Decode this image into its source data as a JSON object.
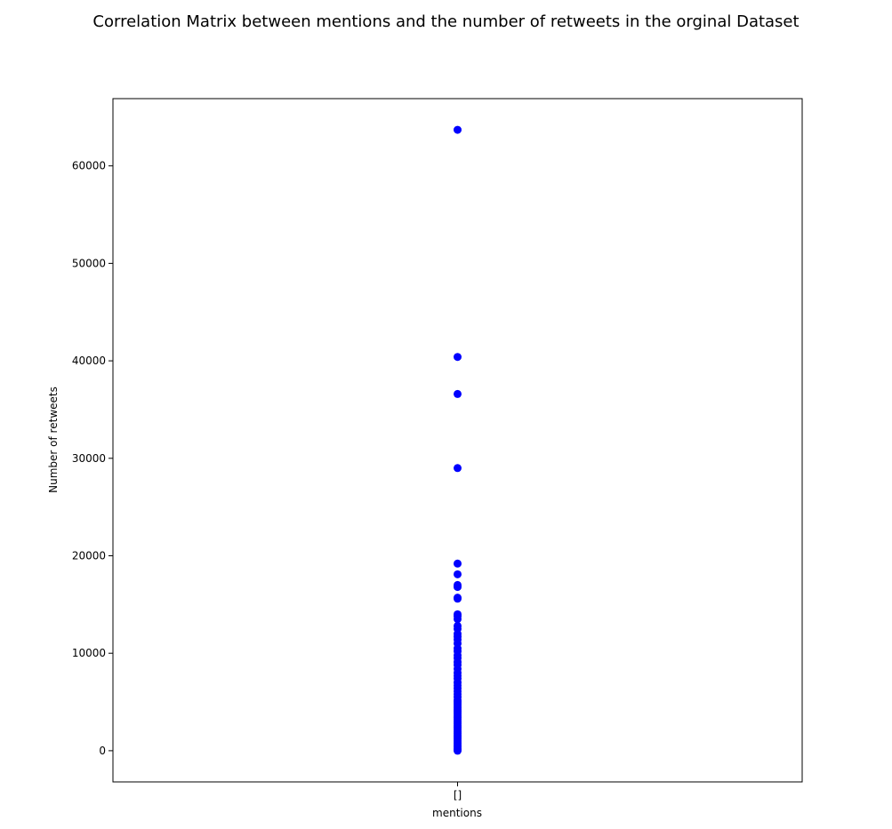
{
  "chart_data": {
    "type": "scatter",
    "title": "Correlation Matrix between mentions and the number of retweets in the orginal Dataset",
    "xlabel": "mentions",
    "ylabel": "Number of retweets",
    "x_categories": [
      "[]"
    ],
    "ylim": [
      -3200,
      66900
    ],
    "y_ticks": [
      0,
      10000,
      20000,
      30000,
      40000,
      50000,
      60000
    ],
    "grid": false,
    "legend": "none",
    "marker_color": "#0000ff",
    "series": [
      {
        "x": "[]",
        "values": [
          63700,
          40400,
          36600,
          29000,
          19200,
          18100,
          17000,
          16800,
          15700,
          15600,
          14000,
          13800,
          13500,
          12800,
          12500,
          12000,
          11700,
          11400,
          11000,
          10500,
          10200,
          9800,
          9500,
          9100,
          8800,
          8400,
          8000,
          7700,
          7400,
          7000,
          6700,
          6400,
          6100,
          5800,
          5500,
          5200,
          5000,
          4800,
          4600,
          4400,
          4200,
          4000,
          3800,
          3600,
          3400,
          3200,
          3000,
          2800,
          2600,
          2400,
          2200,
          2000,
          1800,
          1600,
          1400,
          1200,
          1000,
          800,
          600,
          400,
          200,
          100,
          0
        ]
      }
    ]
  }
}
